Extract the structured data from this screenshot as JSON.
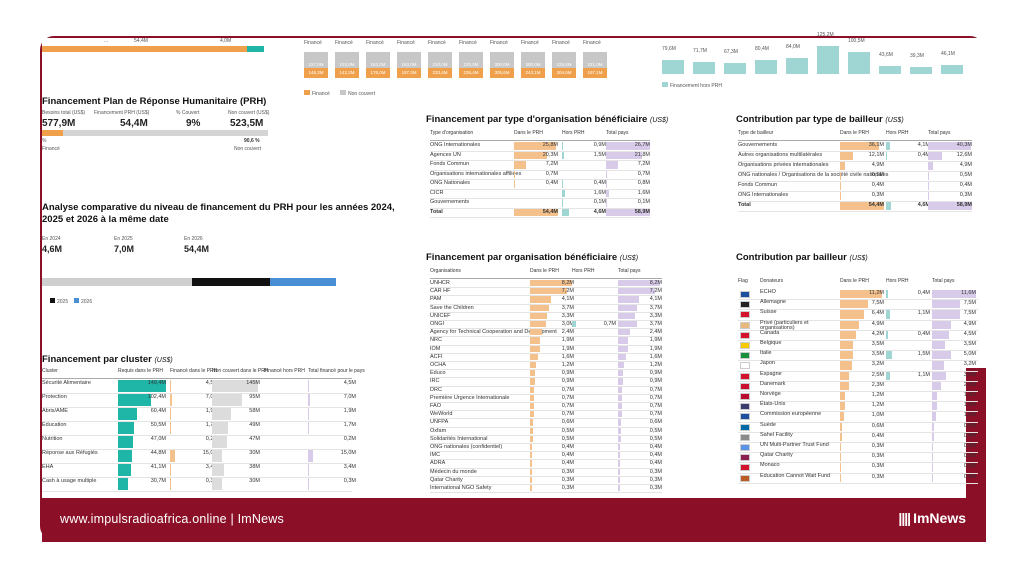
{
  "footer": {
    "link": "www.impulsradioafrica.online | ImNews",
    "brand": "ImNews"
  },
  "top_strip": {
    "partial_label_a": "...",
    "partial_label_b": "54,4M",
    "partial_label_c": "4,0M",
    "financed_label": "Financé",
    "column_values": [
      "227,0M",
      "153,0M",
      "163,0M",
      "163,0M",
      "210,0M",
      "220,0M",
      "300,0M",
      "300,0M",
      "228,0M",
      "221,0M"
    ],
    "column_values_b": [
      "146,3M",
      "142,2M",
      "176,0M",
      "197,3M",
      "233,4M",
      "236,4M",
      "305,6M",
      "243,1M",
      "304,6M",
      "197,1M"
    ],
    "legend_financed": "Financé",
    "legend_not_covered": "Non couvert",
    "right_values": [
      "79,6M",
      "71,7M",
      "67,3M",
      "80,4M",
      "84,0M",
      "125,2M",
      "100,5M",
      "43,6M",
      "39,3M",
      "46,1M"
    ],
    "right_legend": "Financement hors PRH"
  },
  "prh": {
    "title": "Financement Plan de Réponse Humanitaire (PRH)",
    "col_required": "Besoins total (US$)",
    "col_financed": "Financement PRH (US$)",
    "col_covered": "% Couvert",
    "col_uncovered": "Non couvert (US$)",
    "val_required": "577,9M",
    "val_financed": "54,4M",
    "val_covered": "9%",
    "val_uncovered": "523,5M",
    "pct_right": "90,6 %",
    "label_left": "Financé",
    "label_right": "Non couvert",
    "pct_left": "%"
  },
  "comparison": {
    "title_l1": "Analyse comparative du niveau de financement du PRH pour les années 2024,",
    "title_l2": "2025 et 2026 à la même date",
    "y2024_label": "En 2024",
    "y2025_label": "En 2025",
    "y2026_label": "En 2026",
    "y2024_val": "4,6M",
    "y2025_val": "7,0M",
    "y2026_val": "54,4M",
    "legend_2025": "2025",
    "legend_2026": "2026"
  },
  "cluster": {
    "title": "Financement par cluster",
    "unit": "(US$)",
    "headers": [
      "Cluster",
      "Requis dans le PRH",
      "Financé dans le PRH",
      "Non couvert dans le PRH",
      "Financé hors PRH",
      "Total financé pour le pays"
    ],
    "rows": [
      [
        "Sécurité Alimentaire",
        "149,4M",
        "4,5M",
        "145M",
        "",
        "4,5M"
      ],
      [
        "Protection",
        "102,4M",
        "7,0M",
        "95M",
        "",
        "7,0M"
      ],
      [
        "Abris/AME",
        "60,4M",
        "1,9M",
        "58M",
        "",
        "1,9M"
      ],
      [
        "Education",
        "50,5M",
        "1,7M",
        "49M",
        "",
        "1,7M"
      ],
      [
        "Nutrition",
        "47,0M",
        "0,2M",
        "47M",
        "",
        "0,2M"
      ],
      [
        "Réponse aux Réfugiés",
        "44,8M",
        "15,0M",
        "30M",
        "",
        "15,0M"
      ],
      [
        "EHA",
        "41,1M",
        "3,4M",
        "38M",
        "",
        "3,4M"
      ],
      [
        "Cash à usage multiple",
        "30,7M",
        "0,3M",
        "30M",
        "",
        "0,3M"
      ]
    ]
  },
  "org_type": {
    "title": "Financement par type d'organisation bénéficiaire",
    "unit": "(US$)",
    "headers": [
      "Type d'organisation",
      "Dans le PRH",
      "Hors PRH",
      "Total pays"
    ],
    "rows": [
      [
        "ONG Internationales",
        "25,8M",
        "0,9M",
        "26,7M"
      ],
      [
        "Agences UN",
        "20,3M",
        "1,5M",
        "21,8M"
      ],
      [
        "Fonds Commun",
        "7,2M",
        "",
        "7,2M"
      ],
      [
        "Organisations internationales affiliées",
        "0,7M",
        "",
        "0,7M"
      ],
      [
        "ONG Nationales",
        "0,4M",
        "0,4M",
        "0,8M"
      ],
      [
        "CICR",
        "",
        "1,6M",
        "1,6M"
      ],
      [
        "Gouvernements",
        "",
        "0,1M",
        "0,1M"
      ],
      [
        "Total",
        "54,4M",
        "4,6M",
        "58,9M"
      ]
    ]
  },
  "donor_type": {
    "title": "Contribution par type de bailleur",
    "unit": "(US$)",
    "headers": [
      "Type de bailleur",
      "Dans le PRH",
      "Hors PRH",
      "Total pays"
    ],
    "rows": [
      [
        "Gouvernements",
        "36,1M",
        "4,1M",
        "40,3M"
      ],
      [
        "Autres organisations multilatérales",
        "12,1M",
        "0,4M",
        "12,6M"
      ],
      [
        "Organisations privées internationales",
        "4,9M",
        "",
        "4,9M"
      ],
      [
        "ONG nationales / Organisations de la société civile nationales",
        "0,5M",
        "",
        "0,5M"
      ],
      [
        "Fonds Commun",
        "0,4M",
        "",
        "0,4M"
      ],
      [
        "ONG Internationales",
        "0,3M",
        "",
        "0,3M"
      ],
      [
        "Total",
        "54,4M",
        "4,6M",
        "58,9M"
      ]
    ]
  },
  "org_benef": {
    "title": "Financement par organisation bénéficiaire",
    "unit": "(US$)",
    "headers": [
      "Organisations",
      "Dans le PRH",
      "Hors PRH",
      "Total pays"
    ],
    "rows": [
      [
        "UNHCR",
        "8,2M",
        "",
        "8,2M"
      ],
      [
        "CAR HF",
        "7,2M",
        "",
        "7,2M"
      ],
      [
        "PAM",
        "4,1M",
        "",
        "4,1M"
      ],
      [
        "Save the Children",
        "3,7M",
        "",
        "3,7M"
      ],
      [
        "UNICEF",
        "3,3M",
        "",
        "3,3M"
      ],
      [
        "ONGI",
        "3,0M",
        "0,7M",
        "3,7M"
      ],
      [
        "Agency for Technical Cooperation and Development",
        "2,4M",
        "",
        "2,4M"
      ],
      [
        "NRC",
        "1,9M",
        "",
        "1,9M"
      ],
      [
        "IOM",
        "1,9M",
        "",
        "1,9M"
      ],
      [
        "ACFI",
        "1,6M",
        "",
        "1,6M"
      ],
      [
        "OCHA",
        "1,2M",
        "",
        "1,2M"
      ],
      [
        "Educo",
        "0,9M",
        "",
        "0,9M"
      ],
      [
        "IRC",
        "0,9M",
        "",
        "0,9M"
      ],
      [
        "DRC",
        "0,7M",
        "",
        "0,7M"
      ],
      [
        "Première Urgence Internationale",
        "0,7M",
        "",
        "0,7M"
      ],
      [
        "FAO",
        "0,7M",
        "",
        "0,7M"
      ],
      [
        "WeWorld",
        "0,7M",
        "",
        "0,7M"
      ],
      [
        "UNFPA",
        "0,6M",
        "",
        "0,6M"
      ],
      [
        "Oxfam",
        "0,5M",
        "",
        "0,5M"
      ],
      [
        "Solidarités International",
        "0,5M",
        "",
        "0,5M"
      ],
      [
        "ONG nationales (confidentiel)",
        "0,4M",
        "",
        "0,4M"
      ],
      [
        "IMC",
        "0,4M",
        "",
        "0,4M"
      ],
      [
        "ADRA",
        "0,4M",
        "",
        "0,4M"
      ],
      [
        "Médecin du monde",
        "0,3M",
        "",
        "0,3M"
      ],
      [
        "Qatar Charity",
        "0,3M",
        "",
        "0,3M"
      ],
      [
        "International NGO Safety",
        "0,3M",
        "",
        "0,3M"
      ]
    ]
  },
  "donor": {
    "title": "Contribution par bailleur",
    "unit": "(US$)",
    "headers": [
      "Flag",
      "Donateurs",
      "Dans le PRH",
      "Hors PRH",
      "Total pays"
    ],
    "rows": [
      [
        "ECHO",
        "11,2M",
        "0,4M",
        "11,6M"
      ],
      [
        "Allemagne",
        "7,5M",
        "",
        "7,5M"
      ],
      [
        "Suisse",
        "6,4M",
        "1,1M",
        "7,5M"
      ],
      [
        "Privé (particuliers et organisations)",
        "4,9M",
        "",
        "4,9M"
      ],
      [
        "Canada",
        "4,2M",
        "0,4M",
        "4,5M"
      ],
      [
        "Belgique",
        "3,5M",
        "",
        "3,5M"
      ],
      [
        "Italie",
        "3,5M",
        "1,5M",
        "5,0M"
      ],
      [
        "Japon",
        "3,2M",
        "",
        "3,2M"
      ],
      [
        "Espagne",
        "2,5M",
        "1,1M",
        "3,6M"
      ],
      [
        "Danemark",
        "2,3M",
        "",
        "2,3M"
      ],
      [
        "Norvège",
        "1,2M",
        "",
        "1,2M"
      ],
      [
        "États-Unis",
        "1,2M",
        "",
        "1,2M"
      ],
      [
        "Commission européenne",
        "1,0M",
        "",
        "1,0M"
      ],
      [
        "Suède",
        "0,6M",
        "",
        "0,6M"
      ],
      [
        "Sahel Facility",
        "0,4M",
        "",
        "0,4M"
      ],
      [
        "UN Multi-Partner Trust Fund",
        "0,3M",
        "",
        "0,3M"
      ],
      [
        "Qatar Charity",
        "0,3M",
        "",
        "0,3M"
      ],
      [
        "Monaco",
        "0,3M",
        "",
        "0,3M"
      ],
      [
        "Education Cannot Wait Fund",
        "0,3M",
        "",
        "0,3M"
      ]
    ]
  },
  "colors": {
    "accent": "#8b1027",
    "orange": "#f4c08c",
    "teal": "#9fd6d4",
    "purple": "#d8cbea"
  }
}
